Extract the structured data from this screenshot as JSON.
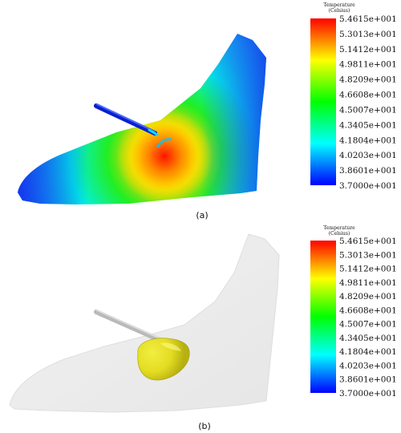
{
  "chart_data": [
    {
      "type": "heatmap",
      "caption": "(a)",
      "legend_title": "Temperature",
      "legend_unit": "(Celsius)",
      "scale_min": 37.0,
      "scale_max": 54.615,
      "tick_labels": [
        "5.4615e+001",
        "5.3013e+001",
        "5.1412e+001",
        "4.9811e+001",
        "4.8209e+001",
        "4.6608e+001",
        "4.5007e+001",
        "4.3405e+001",
        "4.1804e+001",
        "4.0203e+001",
        "3.8601e+001",
        "3.7000e+001"
      ],
      "colormap": [
        "#ff0000",
        "#ffff00",
        "#00ff00",
        "#00ffff",
        "#0000ff"
      ]
    },
    {
      "type": "heatmap",
      "caption": "(b)",
      "legend_title": "Temperature",
      "legend_unit": "(Celsius)",
      "scale_min": 37.0,
      "scale_max": 54.615,
      "tick_labels": [
        "5.4615e+001",
        "5.3013e+001",
        "5.1412e+001",
        "4.9811e+001",
        "4.8209e+001",
        "4.6608e+001",
        "4.5007e+001",
        "4.3405e+001",
        "4.1804e+001",
        "4.0203e+001",
        "3.8601e+001",
        "3.7000e+001"
      ],
      "colormap": [
        "#ff0000",
        "#ffff00",
        "#00ff00",
        "#00ffff",
        "#0000ff"
      ],
      "isosurface_color": "#e6e11e",
      "body_color": "#ededed"
    }
  ]
}
